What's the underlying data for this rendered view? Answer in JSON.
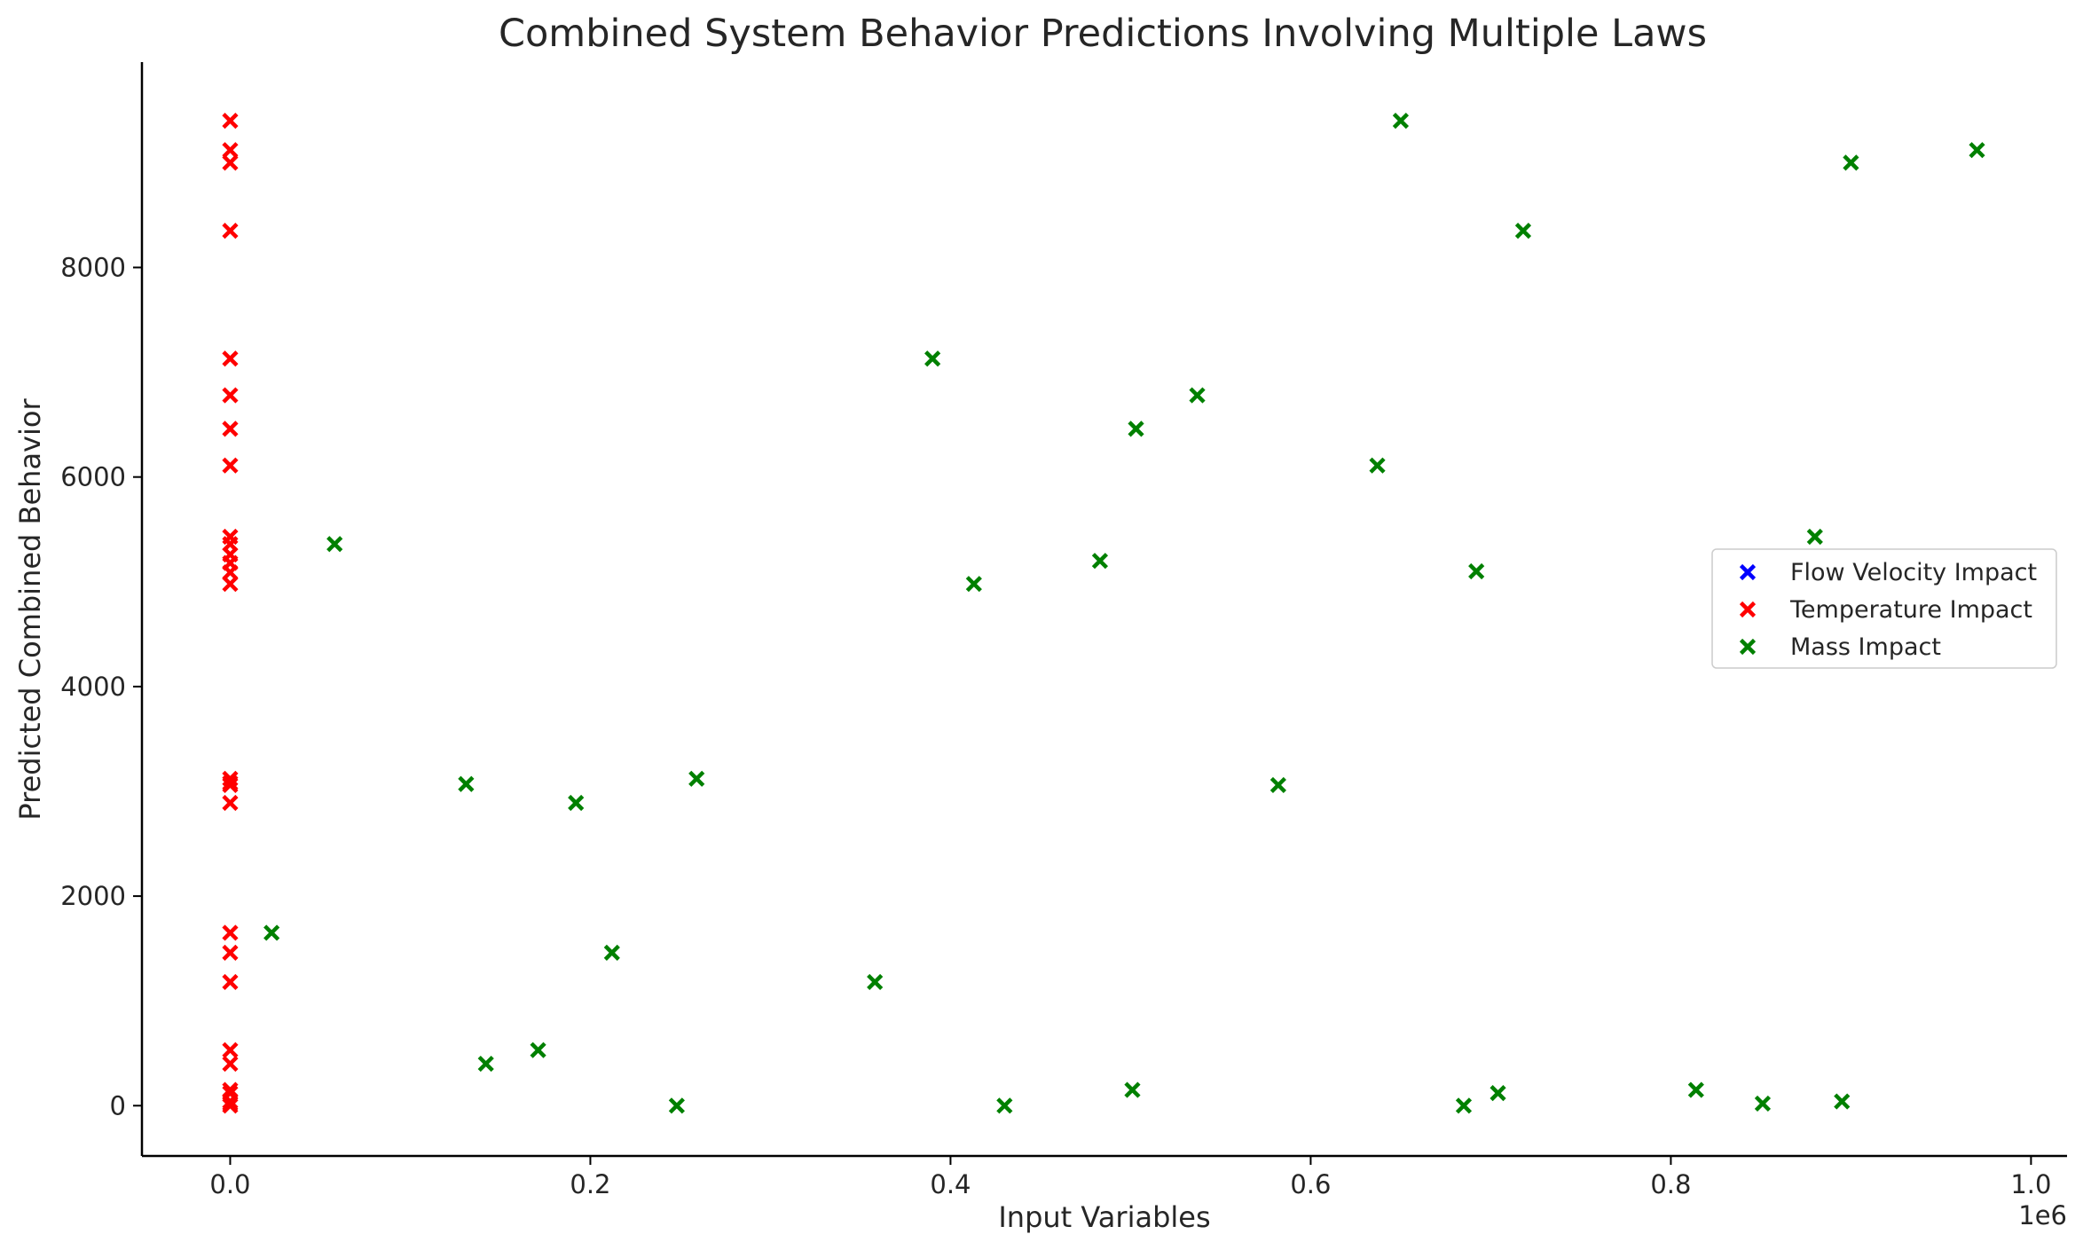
{
  "chart_data": {
    "type": "scatter",
    "title": "Combined System Behavior Predictions Involving Multiple Laws",
    "xlabel": "Input Variables",
    "ylabel": "Predicted Combined Behavior",
    "x_offset_label": "1e6",
    "xlim": [
      -0.049,
      1.02
    ],
    "ylim": [
      -480,
      9960
    ],
    "x_ticks": [
      0.0,
      0.2,
      0.4,
      0.6,
      0.8,
      1.0
    ],
    "x_tick_labels": [
      "0.0",
      "0.2",
      "0.4",
      "0.6",
      "0.8",
      "1.0"
    ],
    "y_ticks": [
      0,
      2000,
      4000,
      6000,
      8000
    ],
    "y_tick_labels": [
      "0",
      "2000",
      "4000",
      "6000",
      "8000"
    ],
    "x_scale_factor": 1000000,
    "grid": false,
    "legend_position": "center-right",
    "series": [
      {
        "name": "Flow Velocity Impact",
        "color": "#0000ff",
        "marker": "x",
        "points": []
      },
      {
        "name": "Temperature Impact",
        "color": "#ff0000",
        "marker": "x",
        "points": [
          [
            0,
            9400
          ],
          [
            0,
            9120
          ],
          [
            0,
            9000
          ],
          [
            0,
            8350
          ],
          [
            0,
            7130
          ],
          [
            0,
            6780
          ],
          [
            0,
            6460
          ],
          [
            0,
            6110
          ],
          [
            0,
            5430
          ],
          [
            0,
            5360
          ],
          [
            0,
            5260
          ],
          [
            0,
            5180
          ],
          [
            0,
            5090
          ],
          [
            0,
            4980
          ],
          [
            0,
            3120
          ],
          [
            0,
            3080
          ],
          [
            0,
            3060
          ],
          [
            0,
            2890
          ],
          [
            0,
            1650
          ],
          [
            0,
            1460
          ],
          [
            0,
            1180
          ],
          [
            0,
            530
          ],
          [
            0,
            400
          ],
          [
            0,
            150
          ],
          [
            0,
            120
          ],
          [
            0,
            40
          ],
          [
            0,
            20
          ],
          [
            0,
            0
          ]
        ]
      },
      {
        "name": "Mass Impact",
        "color": "#008000",
        "marker": "x",
        "points": [
          [
            650000,
            9400
          ],
          [
            970000,
            9120
          ],
          [
            900000,
            9000
          ],
          [
            718000,
            8350
          ],
          [
            390000,
            7130
          ],
          [
            537000,
            6780
          ],
          [
            503000,
            6460
          ],
          [
            637000,
            6110
          ],
          [
            880000,
            5430
          ],
          [
            58000,
            5360
          ],
          [
            483000,
            5200
          ],
          [
            692000,
            5100
          ],
          [
            413000,
            4980
          ],
          [
            259000,
            3120
          ],
          [
            131000,
            3070
          ],
          [
            582000,
            3060
          ],
          [
            192000,
            2890
          ],
          [
            23000,
            1650
          ],
          [
            212000,
            1460
          ],
          [
            358000,
            1180
          ],
          [
            171000,
            530
          ],
          [
            142000,
            400
          ],
          [
            814000,
            150
          ],
          [
            501000,
            150
          ],
          [
            704000,
            120
          ],
          [
            895000,
            40
          ],
          [
            851000,
            20
          ],
          [
            248000,
            0
          ],
          [
            430000,
            0
          ],
          [
            685000,
            0
          ]
        ]
      }
    ]
  }
}
